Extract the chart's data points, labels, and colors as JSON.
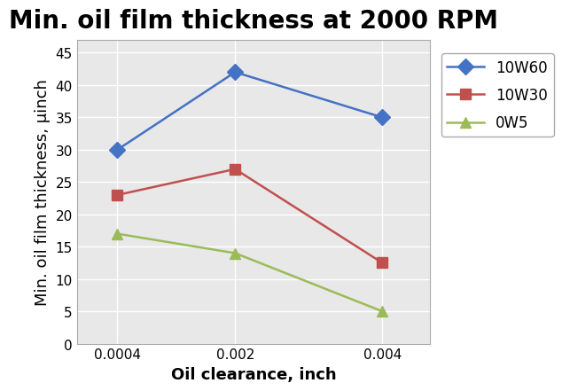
{
  "title": "Min. oil film thickness at 2000 RPM",
  "xlabel": "Oil clearance, inch",
  "ylabel": "Min. oil film thickness, μinch",
  "x_values": [
    0.0004,
    0.002,
    0.004
  ],
  "x_tick_labels": [
    "0.0004",
    "0.002",
    "0.004"
  ],
  "series": [
    {
      "label": "10W60",
      "y_values": [
        30,
        42,
        35
      ],
      "color": "#4472C4",
      "marker": "D"
    },
    {
      "label": "10W30",
      "y_values": [
        23,
        27,
        12.5
      ],
      "color": "#C0504D",
      "marker": "s"
    },
    {
      "label": "0W5",
      "y_values": [
        17,
        14,
        5
      ],
      "color": "#9BBB59",
      "marker": "^"
    }
  ],
  "ylim": [
    0,
    47
  ],
  "yticks": [
    0,
    5,
    10,
    15,
    20,
    25,
    30,
    35,
    40,
    45
  ],
  "title_fontsize": 20,
  "axis_label_fontsize": 13,
  "tick_fontsize": 11,
  "legend_fontsize": 12,
  "figure_bg": "#FFFFFF",
  "plot_bg": "#E8E8E8",
  "grid_color": "#FFFFFF",
  "spine_color": "#AAAAAA",
  "line_width": 1.8,
  "marker_size": 9
}
